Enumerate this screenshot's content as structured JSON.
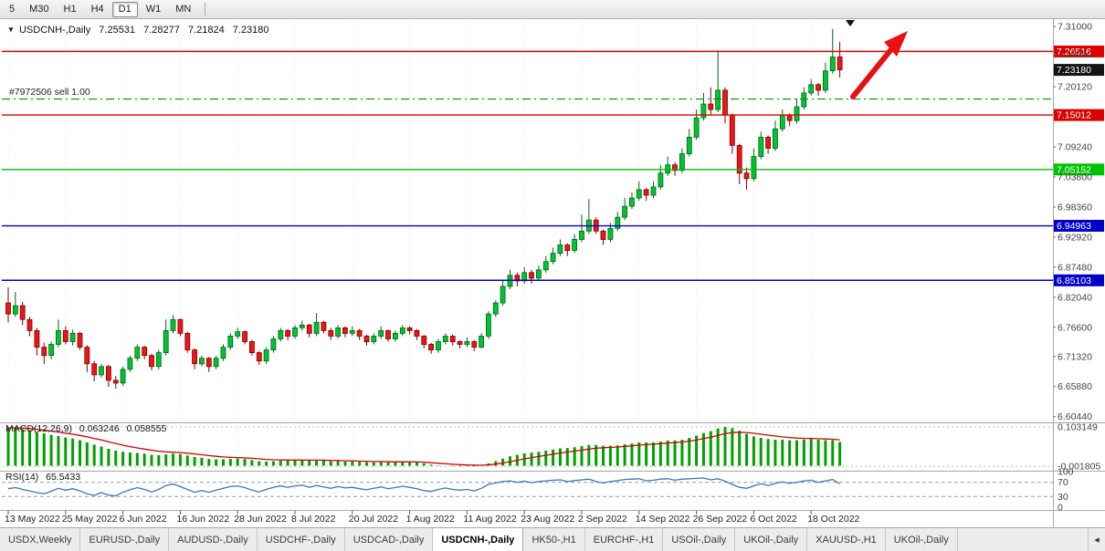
{
  "toolbar": {
    "timeframes": [
      "5",
      "M30",
      "H1",
      "H4",
      "D1",
      "W1",
      "MN"
    ],
    "active": "D1"
  },
  "header": {
    "symbol": "USDCNH-,Daily",
    "open": "7.25531",
    "high": "7.28277",
    "low": "7.21824",
    "close": "7.23180"
  },
  "order_line": {
    "label": "#7972506 sell 1.00",
    "price": 7.179,
    "color": "#009000"
  },
  "levels": [
    {
      "value": 7.26516,
      "label": "7.26516",
      "color": "#dd0000",
      "text_color": "#ffffff",
      "line": true
    },
    {
      "value": 7.2318,
      "label": "7.23180",
      "color": "#141414",
      "text_color": "#ffffff",
      "line": false
    },
    {
      "value": 7.15012,
      "label": "7.15012",
      "color": "#dd0000",
      "text_color": "#ffffff",
      "line": true
    },
    {
      "value": 7.05152,
      "label": "7.05152",
      "color": "#00c300",
      "text_color": "#ffffff",
      "line": true
    },
    {
      "value": 6.94963,
      "label": "6.94963",
      "color": "#0000c8",
      "text_color": "#ffffff",
      "line": true
    },
    {
      "value": 6.85103,
      "label": "6.85103",
      "color": "#0000c8",
      "text_color": "#ffffff",
      "line": true
    }
  ],
  "price_axis": {
    "ticks": [
      "7.31000",
      "7.25980",
      "7.20120",
      "7.09240",
      "7.03800",
      "6.98360",
      "6.92920",
      "6.87480",
      "6.82040",
      "6.76600",
      "6.71320",
      "6.65880",
      "6.60440"
    ],
    "range_max": 7.3153,
    "range_min": 6.5989
  },
  "annotations": {
    "arrow_color": "#e81010",
    "marker_color": "#111111"
  },
  "chart_data": {
    "type": "candlestick",
    "symbol": "USDCNH-",
    "period": "Daily",
    "colors": {
      "up": "#00c432",
      "up_border": "#006414",
      "down": "#ee1515",
      "down_border": "#7a0000",
      "macd_hist": "#00a000",
      "macd_signal": "#d40000",
      "rsi_line": "#3c78b4"
    },
    "x_labels": [
      {
        "i": 0,
        "label": "13 May 2022"
      },
      {
        "i": 8,
        "label": "25 May 2022"
      },
      {
        "i": 16,
        "label": "6 Jun 2022"
      },
      {
        "i": 24,
        "label": "16 Jun 2022"
      },
      {
        "i": 32,
        "label": "28 Jun 2022"
      },
      {
        "i": 40,
        "label": "8 Jul 2022"
      },
      {
        "i": 48,
        "label": "20 Jul 2022"
      },
      {
        "i": 56,
        "label": "1 Aug 2022"
      },
      {
        "i": 64,
        "label": "11 Aug 2022"
      },
      {
        "i": 72,
        "label": "23 Aug 2022"
      },
      {
        "i": 80,
        "label": "2 Sep 2022"
      },
      {
        "i": 88,
        "label": "14 Sep 2022"
      },
      {
        "i": 96,
        "label": "26 Sep 2022"
      },
      {
        "i": 104,
        "label": "6 Oct 2022"
      },
      {
        "i": 112,
        "label": "18 Oct 2022"
      }
    ],
    "candles": [
      [
        6.81,
        6.838,
        6.775,
        6.79
      ],
      [
        6.79,
        6.83,
        6.785,
        6.805
      ],
      [
        6.805,
        6.812,
        6.77,
        6.78
      ],
      [
        6.78,
        6.785,
        6.75,
        6.76
      ],
      [
        6.76,
        6.765,
        6.715,
        6.73
      ],
      [
        6.73,
        6.738,
        6.7,
        6.715
      ],
      [
        6.715,
        6.74,
        6.708,
        6.735
      ],
      [
        6.735,
        6.78,
        6.73,
        6.76
      ],
      [
        6.76,
        6.768,
        6.735,
        6.74
      ],
      [
        6.74,
        6.762,
        6.733,
        6.755
      ],
      [
        6.755,
        6.758,
        6.725,
        6.73
      ],
      [
        6.73,
        6.734,
        6.685,
        6.7
      ],
      [
        6.7,
        6.705,
        6.668,
        6.68
      ],
      [
        6.68,
        6.7,
        6.675,
        6.695
      ],
      [
        6.695,
        6.698,
        6.658,
        6.67
      ],
      [
        6.67,
        6.678,
        6.655,
        6.665
      ],
      [
        6.665,
        6.695,
        6.66,
        6.69
      ],
      [
        6.69,
        6.715,
        6.685,
        6.71
      ],
      [
        6.71,
        6.735,
        6.705,
        6.73
      ],
      [
        6.73,
        6.733,
        6.708,
        6.715
      ],
      [
        6.715,
        6.718,
        6.688,
        6.695
      ],
      [
        6.695,
        6.725,
        6.69,
        6.72
      ],
      [
        6.72,
        6.78,
        6.715,
        6.76
      ],
      [
        6.76,
        6.788,
        6.755,
        6.78
      ],
      [
        6.78,
        6.782,
        6.75,
        6.755
      ],
      [
        6.755,
        6.758,
        6.72,
        6.725
      ],
      [
        6.725,
        6.728,
        6.69,
        6.7
      ],
      [
        6.7,
        6.715,
        6.695,
        6.71
      ],
      [
        6.71,
        6.712,
        6.685,
        6.695
      ],
      [
        6.695,
        6.715,
        6.69,
        6.71
      ],
      [
        6.71,
        6.735,
        6.705,
        6.73
      ],
      [
        6.73,
        6.755,
        6.725,
        6.75
      ],
      [
        6.75,
        6.765,
        6.745,
        6.758
      ],
      [
        6.758,
        6.76,
        6.735,
        6.74
      ],
      [
        6.74,
        6.743,
        6.715,
        6.72
      ],
      [
        6.72,
        6.723,
        6.698,
        6.705
      ],
      [
        6.705,
        6.73,
        6.7,
        6.725
      ],
      [
        6.725,
        6.75,
        6.72,
        6.745
      ],
      [
        6.745,
        6.765,
        6.74,
        6.76
      ],
      [
        6.76,
        6.763,
        6.742,
        6.75
      ],
      [
        6.75,
        6.77,
        6.745,
        6.765
      ],
      [
        6.765,
        6.778,
        6.76,
        6.77
      ],
      [
        6.77,
        6.772,
        6.748,
        6.755
      ],
      [
        6.755,
        6.792,
        6.75,
        6.775
      ],
      [
        6.775,
        6.778,
        6.755,
        6.76
      ],
      [
        6.76,
        6.765,
        6.743,
        6.75
      ],
      [
        6.75,
        6.77,
        6.745,
        6.765
      ],
      [
        6.765,
        6.768,
        6.748,
        6.755
      ],
      [
        6.755,
        6.768,
        6.75,
        6.76
      ],
      [
        6.76,
        6.763,
        6.743,
        6.75
      ],
      [
        6.75,
        6.753,
        6.733,
        6.74
      ],
      [
        6.74,
        6.755,
        6.735,
        6.75
      ],
      [
        6.75,
        6.768,
        6.745,
        6.76
      ],
      [
        6.76,
        6.762,
        6.74,
        6.745
      ],
      [
        6.745,
        6.76,
        6.74,
        6.755
      ],
      [
        6.755,
        6.77,
        6.75,
        6.765
      ],
      [
        6.765,
        6.768,
        6.753,
        6.76
      ],
      [
        6.76,
        6.763,
        6.743,
        6.75
      ],
      [
        6.75,
        6.752,
        6.728,
        6.735
      ],
      [
        6.735,
        6.738,
        6.718,
        6.725
      ],
      [
        6.725,
        6.745,
        6.72,
        6.74
      ],
      [
        6.74,
        6.755,
        6.735,
        6.75
      ],
      [
        6.75,
        6.753,
        6.733,
        6.74
      ],
      [
        6.74,
        6.743,
        6.728,
        6.735
      ],
      [
        6.735,
        6.748,
        6.73,
        6.74
      ],
      [
        6.74,
        6.743,
        6.723,
        6.73
      ],
      [
        6.73,
        6.755,
        6.728,
        6.75
      ],
      [
        6.75,
        6.795,
        6.745,
        6.79
      ],
      [
        6.79,
        6.815,
        6.785,
        6.81
      ],
      [
        6.81,
        6.85,
        6.805,
        6.84
      ],
      [
        6.84,
        6.87,
        6.835,
        6.86
      ],
      [
        6.86,
        6.865,
        6.84,
        6.85
      ],
      [
        6.85,
        6.875,
        6.845,
        6.865
      ],
      [
        6.865,
        6.87,
        6.845,
        6.855
      ],
      [
        6.855,
        6.878,
        6.85,
        6.87
      ],
      [
        6.87,
        6.895,
        6.865,
        6.885
      ],
      [
        6.885,
        6.91,
        6.88,
        6.9
      ],
      [
        6.9,
        6.925,
        6.895,
        6.915
      ],
      [
        6.915,
        6.918,
        6.895,
        6.905
      ],
      [
        6.905,
        6.935,
        6.9,
        6.925
      ],
      [
        6.925,
        6.97,
        6.92,
        6.94
      ],
      [
        6.94,
        6.998,
        6.935,
        6.96
      ],
      [
        6.96,
        6.965,
        6.935,
        6.94
      ],
      [
        6.94,
        6.943,
        6.915,
        6.925
      ],
      [
        6.925,
        6.955,
        6.92,
        6.945
      ],
      [
        6.945,
        6.975,
        6.94,
        6.965
      ],
      [
        6.965,
        7.0,
        6.96,
        6.985
      ],
      [
        6.985,
        7.01,
        6.98,
        7.0
      ],
      [
        7.0,
        7.03,
        6.995,
        7.015
      ],
      [
        7.015,
        7.018,
        6.995,
        7.005
      ],
      [
        7.005,
        7.03,
        7.0,
        7.02
      ],
      [
        7.02,
        7.06,
        7.015,
        7.045
      ],
      [
        7.045,
        7.075,
        7.04,
        7.06
      ],
      [
        7.06,
        7.065,
        7.04,
        7.05
      ],
      [
        7.05,
        7.09,
        7.045,
        7.08
      ],
      [
        7.08,
        7.125,
        7.075,
        7.11
      ],
      [
        7.11,
        7.16,
        7.105,
        7.145
      ],
      [
        7.145,
        7.19,
        7.14,
        7.17
      ],
      [
        7.17,
        7.2,
        7.15,
        7.16
      ],
      [
        7.16,
        7.267,
        7.155,
        7.195
      ],
      [
        7.195,
        7.2,
        7.135,
        7.15
      ],
      [
        7.15,
        7.153,
        7.08,
        7.095
      ],
      [
        7.095,
        7.098,
        7.025,
        7.045
      ],
      [
        7.045,
        7.055,
        7.015,
        7.035
      ],
      [
        7.035,
        7.09,
        7.03,
        7.075
      ],
      [
        7.075,
        7.12,
        7.07,
        7.11
      ],
      [
        7.11,
        7.113,
        7.08,
        7.09
      ],
      [
        7.09,
        7.14,
        7.085,
        7.125
      ],
      [
        7.125,
        7.16,
        7.12,
        7.15
      ],
      [
        7.15,
        7.153,
        7.13,
        7.14
      ],
      [
        7.14,
        7.18,
        7.135,
        7.165
      ],
      [
        7.165,
        7.2,
        7.16,
        7.19
      ],
      [
        7.19,
        7.215,
        7.185,
        7.205
      ],
      [
        7.205,
        7.208,
        7.185,
        7.195
      ],
      [
        7.195,
        7.245,
        7.19,
        7.23
      ],
      [
        7.23,
        7.306,
        7.225,
        7.255
      ],
      [
        7.2553,
        7.2828,
        7.2182,
        7.2318
      ]
    ],
    "indicators": {
      "macd": {
        "label": "MACD(12,26,9)",
        "main_value": "0.063246",
        "signal_value": "0.058555",
        "axis_max": "0.103149",
        "axis_min": "-0.001805",
        "values": [
          0.101,
          0.099,
          0.097,
          0.094,
          0.09,
          0.086,
          0.082,
          0.079,
          0.075,
          0.072,
          0.068,
          0.062,
          0.056,
          0.051,
          0.045,
          0.04,
          0.037,
          0.035,
          0.034,
          0.032,
          0.029,
          0.028,
          0.03,
          0.032,
          0.031,
          0.027,
          0.023,
          0.021,
          0.018,
          0.017,
          0.017,
          0.018,
          0.019,
          0.018,
          0.015,
          0.012,
          0.011,
          0.012,
          0.014,
          0.014,
          0.015,
          0.015,
          0.014,
          0.015,
          0.014,
          0.012,
          0.012,
          0.011,
          0.011,
          0.01,
          0.009,
          0.009,
          0.01,
          0.009,
          0.009,
          0.01,
          0.01,
          0.009,
          0.006,
          0.003,
          0.001,
          0.0,
          -0.001,
          -0.0018,
          -0.001,
          -0.0012,
          0.001,
          0.006,
          0.012,
          0.019,
          0.025,
          0.029,
          0.033,
          0.035,
          0.037,
          0.04,
          0.043,
          0.046,
          0.047,
          0.049,
          0.052,
          0.055,
          0.055,
          0.053,
          0.053,
          0.054,
          0.057,
          0.059,
          0.062,
          0.062,
          0.062,
          0.064,
          0.067,
          0.067,
          0.069,
          0.074,
          0.08,
          0.087,
          0.092,
          0.099,
          0.1031,
          0.1,
          0.093,
          0.085,
          0.078,
          0.074,
          0.071,
          0.069,
          0.069,
          0.068,
          0.068,
          0.07,
          0.071,
          0.069,
          0.068,
          0.068,
          0.0632
        ]
      },
      "rsi": {
        "label": "RSI(14)",
        "value": "65.5433",
        "ticks": [
          "100",
          "70",
          "30",
          "0"
        ],
        "levels": [
          70,
          30
        ],
        "values": [
          52,
          55,
          50,
          46,
          41,
          38,
          45,
          53,
          48,
          52,
          46,
          38,
          33,
          41,
          34,
          32,
          42,
          49,
          55,
          50,
          43,
          50,
          61,
          65,
          58,
          50,
          42,
          47,
          42,
          48,
          53,
          58,
          60,
          55,
          48,
          43,
          50,
          56,
          60,
          56,
          60,
          62,
          56,
          61,
          57,
          53,
          58,
          54,
          56,
          52,
          49,
          53,
          57,
          52,
          55,
          59,
          56,
          52,
          47,
          44,
          50,
          54,
          50,
          48,
          50,
          46,
          53,
          64,
          68,
          72,
          74,
          70,
          73,
          69,
          72,
          74,
          76,
          77,
          72,
          75,
          77,
          79,
          72,
          68,
          72,
          75,
          78,
          79,
          80,
          74,
          76,
          79,
          80,
          76,
          79,
          80,
          81,
          82,
          77,
          80,
          73,
          64,
          56,
          53,
          60,
          66,
          61,
          67,
          71,
          67,
          70,
          74,
          76,
          70,
          74,
          78,
          65.5
        ]
      }
    }
  },
  "tabs": {
    "items": [
      "USDX,Weekly",
      "EURUSD-,Daily",
      "AUDUSD-,Daily",
      "USDCHF-,Daily",
      "USDCAD-,Daily",
      "USDCNH-,Daily",
      "HK50-,H1",
      "EURCHF-,H1",
      "USOil-,Daily",
      "UKOil-,Daily",
      "XAUUSD-,H1",
      "UKOil-,Daily"
    ],
    "active_index": 5
  }
}
